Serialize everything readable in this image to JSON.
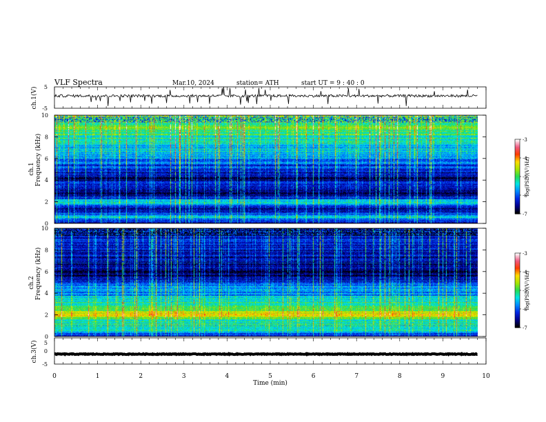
{
  "header": {
    "title": "VLF  Spectra",
    "date": "Mar.10, 2024",
    "station": "station= ATH",
    "start": "start  UT  =   9  : 40 : 0"
  },
  "chart_data": [
    {
      "type": "line",
      "name": "ch1-waveform",
      "ylabel": "ch.1(V)",
      "ylim": [
        -5,
        5
      ],
      "yticks": [
        "5",
        "-5"
      ],
      "xlim": [
        0,
        10
      ],
      "series": [
        {
          "color": "#000000",
          "baseline": 0.8,
          "noise_amplitude": 0.6,
          "x_end": 9.8
        }
      ]
    },
    {
      "type": "heatmap",
      "name": "ch1-spectrogram",
      "ylabel": "ch.1\nFrequency (kHz)",
      "ylim": [
        0,
        10
      ],
      "yticks": [
        "0",
        "2",
        "4",
        "6",
        "8",
        "10"
      ],
      "xlim": [
        0,
        10
      ],
      "x_end": 9.8,
      "colorbar": {
        "label": "log(PSD)(V²/Hz)",
        "range": [
          -7,
          -3
        ],
        "ticks": [
          "-3",
          "-4",
          "-5",
          "-6",
          "-7"
        ]
      },
      "profile": [
        {
          "f": 0.0,
          "v": -6.8
        },
        {
          "f": 0.5,
          "v": -5.6
        },
        {
          "f": 1.0,
          "v": -6.3
        },
        {
          "f": 1.5,
          "v": -6.6
        },
        {
          "f": 2.0,
          "v": -5.4
        },
        {
          "f": 2.5,
          "v": -6.5
        },
        {
          "f": 3.0,
          "v": -6.7
        },
        {
          "f": 3.5,
          "v": -6.0
        },
        {
          "f": 4.0,
          "v": -6.7
        },
        {
          "f": 4.5,
          "v": -6.5
        },
        {
          "f": 5.0,
          "v": -6.3
        },
        {
          "f": 5.5,
          "v": -6.1
        },
        {
          "f": 6.0,
          "v": -5.8
        },
        {
          "f": 6.5,
          "v": -5.6
        },
        {
          "f": 7.0,
          "v": -5.6
        },
        {
          "f": 7.5,
          "v": -5.4
        },
        {
          "f": 8.0,
          "v": -5.2
        },
        {
          "f": 8.5,
          "v": -5.0
        },
        {
          "f": 9.0,
          "v": -4.9
        },
        {
          "f": 9.5,
          "v": -4.8
        },
        {
          "f": 10.0,
          "v": -4.7
        }
      ]
    },
    {
      "type": "heatmap",
      "name": "ch2-spectrogram",
      "ylabel": "ch.2\nFrequency (kHz)",
      "ylim": [
        0,
        10
      ],
      "yticks": [
        "0",
        "2",
        "4",
        "6",
        "8",
        "10"
      ],
      "xlim": [
        0,
        10
      ],
      "x_end": 9.8,
      "colorbar": {
        "label": "log(PSD)(V²/Hz)",
        "range": [
          -7,
          -3
        ],
        "ticks": [
          "-3",
          "-4",
          "-5",
          "-6",
          "-7"
        ]
      },
      "profile": [
        {
          "f": 0.0,
          "v": -6.5
        },
        {
          "f": 0.5,
          "v": -5.4
        },
        {
          "f": 1.0,
          "v": -5.3
        },
        {
          "f": 1.5,
          "v": -5.1
        },
        {
          "f": 2.0,
          "v": -4.1
        },
        {
          "f": 2.5,
          "v": -5.0
        },
        {
          "f": 3.0,
          "v": -5.2
        },
        {
          "f": 3.5,
          "v": -5.5
        },
        {
          "f": 4.0,
          "v": -5.9
        },
        {
          "f": 4.5,
          "v": -5.7
        },
        {
          "f": 5.0,
          "v": -6.3
        },
        {
          "f": 5.5,
          "v": -6.7
        },
        {
          "f": 6.0,
          "v": -6.7
        },
        {
          "f": 6.5,
          "v": -6.6
        },
        {
          "f": 7.0,
          "v": -6.5
        },
        {
          "f": 7.5,
          "v": -6.4
        },
        {
          "f": 8.0,
          "v": -6.4
        },
        {
          "f": 8.5,
          "v": -6.3
        },
        {
          "f": 9.0,
          "v": -6.3
        },
        {
          "f": 9.5,
          "v": -6.3
        },
        {
          "f": 10.0,
          "v": -6.3
        }
      ]
    },
    {
      "type": "line",
      "name": "ch3-waveform",
      "ylabel": "ch.3(V)",
      "ylim": [
        -5,
        5
      ],
      "yticks": [
        "5",
        "0",
        "-5"
      ],
      "xlim": [
        0,
        10
      ],
      "xlabel": "Time  (min)",
      "xticks": [
        "0",
        "1",
        "2",
        "3",
        "4",
        "5",
        "6",
        "7",
        "8",
        "9",
        "10"
      ],
      "series": [
        {
          "color": "#000000",
          "baseline": -1.2,
          "noise_amplitude": 0.15,
          "x_end": 9.8
        }
      ]
    }
  ]
}
